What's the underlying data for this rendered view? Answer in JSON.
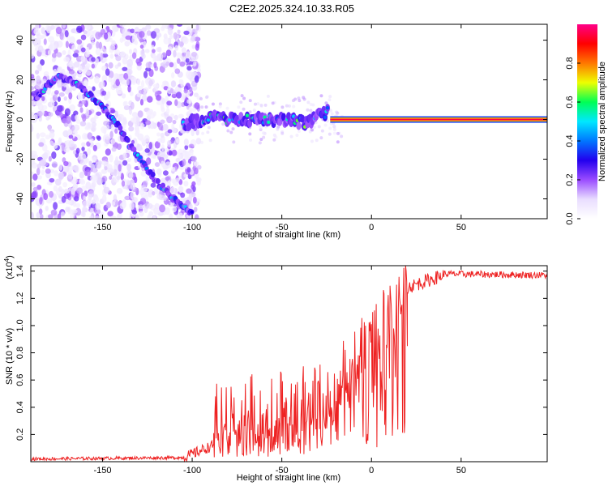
{
  "title": "C2E2.2025.324.10.33.R05",
  "colors": {
    "snr_line": "#ee2222",
    "axis": "#000000",
    "background": "#ffffff"
  },
  "colorbar": {
    "label": "Normalized spectral amplitude",
    "ticks": [
      "0.0",
      "0.2",
      "0.4",
      "0.6",
      "0.8"
    ],
    "tick_values": [
      0.0,
      0.2,
      0.4,
      0.6,
      0.8
    ],
    "range": [
      0,
      1
    ],
    "colormap": [
      "#ffffff",
      "#e9ddff",
      "#9a4cff",
      "#2200ee",
      "#0077ff",
      "#00e8ff",
      "#00ff55",
      "#eeff00",
      "#ff7700",
      "#ff0000",
      "#ff0088"
    ]
  },
  "chart_data": [
    {
      "type": "heatmap",
      "name": "spectrogram",
      "xlabel": "Height of straight line (km)",
      "ylabel": "Frequency (Hz)",
      "xlim": [
        -190,
        98
      ],
      "ylim": [
        -50,
        48
      ],
      "xticks": [
        -150,
        -100,
        -50,
        0,
        50
      ],
      "xtick_labels": [
        "-150",
        "-100",
        "-50",
        "0",
        "50"
      ],
      "yticks": [
        -40,
        -20,
        0,
        20,
        40
      ],
      "ytick_labels": [
        "-40",
        "-20",
        "0",
        "20",
        "40"
      ],
      "tracks": [
        {
          "x": [
            -187,
            -180,
            -175,
            -170,
            -165,
            -158,
            -150,
            -142,
            -135,
            -125,
            -118,
            -110,
            -104,
            -100
          ],
          "y": [
            10,
            18,
            21,
            21,
            18,
            13,
            6,
            -2,
            -13,
            -25,
            -33,
            -40,
            -45,
            -48
          ],
          "amp": 0.45
        },
        {
          "x": [
            -105,
            -95,
            -85,
            -75,
            -65,
            -55,
            -45,
            -35,
            -30,
            -27,
            -24
          ],
          "y": [
            -2,
            0,
            1,
            -1,
            1,
            -1,
            0,
            -2,
            1,
            3,
            4
          ],
          "amp": 0.55
        },
        {
          "x": [
            -23,
            -15,
            -5,
            5,
            15,
            30,
            50,
            70,
            98
          ],
          "y": [
            0.5,
            0,
            0.5,
            0,
            0,
            0,
            0,
            0,
            0
          ],
          "amp": 0.9
        }
      ]
    },
    {
      "type": "line",
      "name": "snr",
      "xlabel": "Height of straight line (km)",
      "ylabel": "SNR (10 * v/v)",
      "y_multiplier": "(x10",
      "y_multiplier_exp": "4",
      "y_multiplier_close": ")",
      "xlim": [
        -190,
        98
      ],
      "ylim": [
        0,
        1.44
      ],
      "xticks": [
        -150,
        -100,
        -50,
        0,
        50
      ],
      "xtick_labels": [
        "-150",
        "-100",
        "-50",
        "0",
        "50"
      ],
      "yticks": [
        0.2,
        0.4,
        0.6,
        0.8,
        1.0,
        1.2,
        1.4
      ],
      "ytick_labels": [
        "0.2",
        "0.4",
        "0.6",
        "0.8",
        "1.0",
        "1.2",
        "1.4"
      ],
      "segments": [
        {
          "x0": -190,
          "x1": -105,
          "y0": 0.02,
          "y1": 0.03,
          "noise": 0.012
        },
        {
          "x0": -105,
          "x1": -88,
          "y0": 0.03,
          "y1": 0.12,
          "noise": 0.04
        },
        {
          "x0": -88,
          "x1": -18,
          "y0": 0.3,
          "y1": 0.45,
          "noise": 0.3
        },
        {
          "x0": -18,
          "x1": 20,
          "y0": 0.6,
          "y1": 1.25,
          "noise": 0.25
        },
        {
          "x0": 20,
          "x1": 40,
          "y0": 1.28,
          "y1": 1.37,
          "noise": 0.05
        },
        {
          "x0": 40,
          "x1": 98,
          "y0": 1.38,
          "y1": 1.37,
          "noise": 0.025
        }
      ]
    }
  ]
}
